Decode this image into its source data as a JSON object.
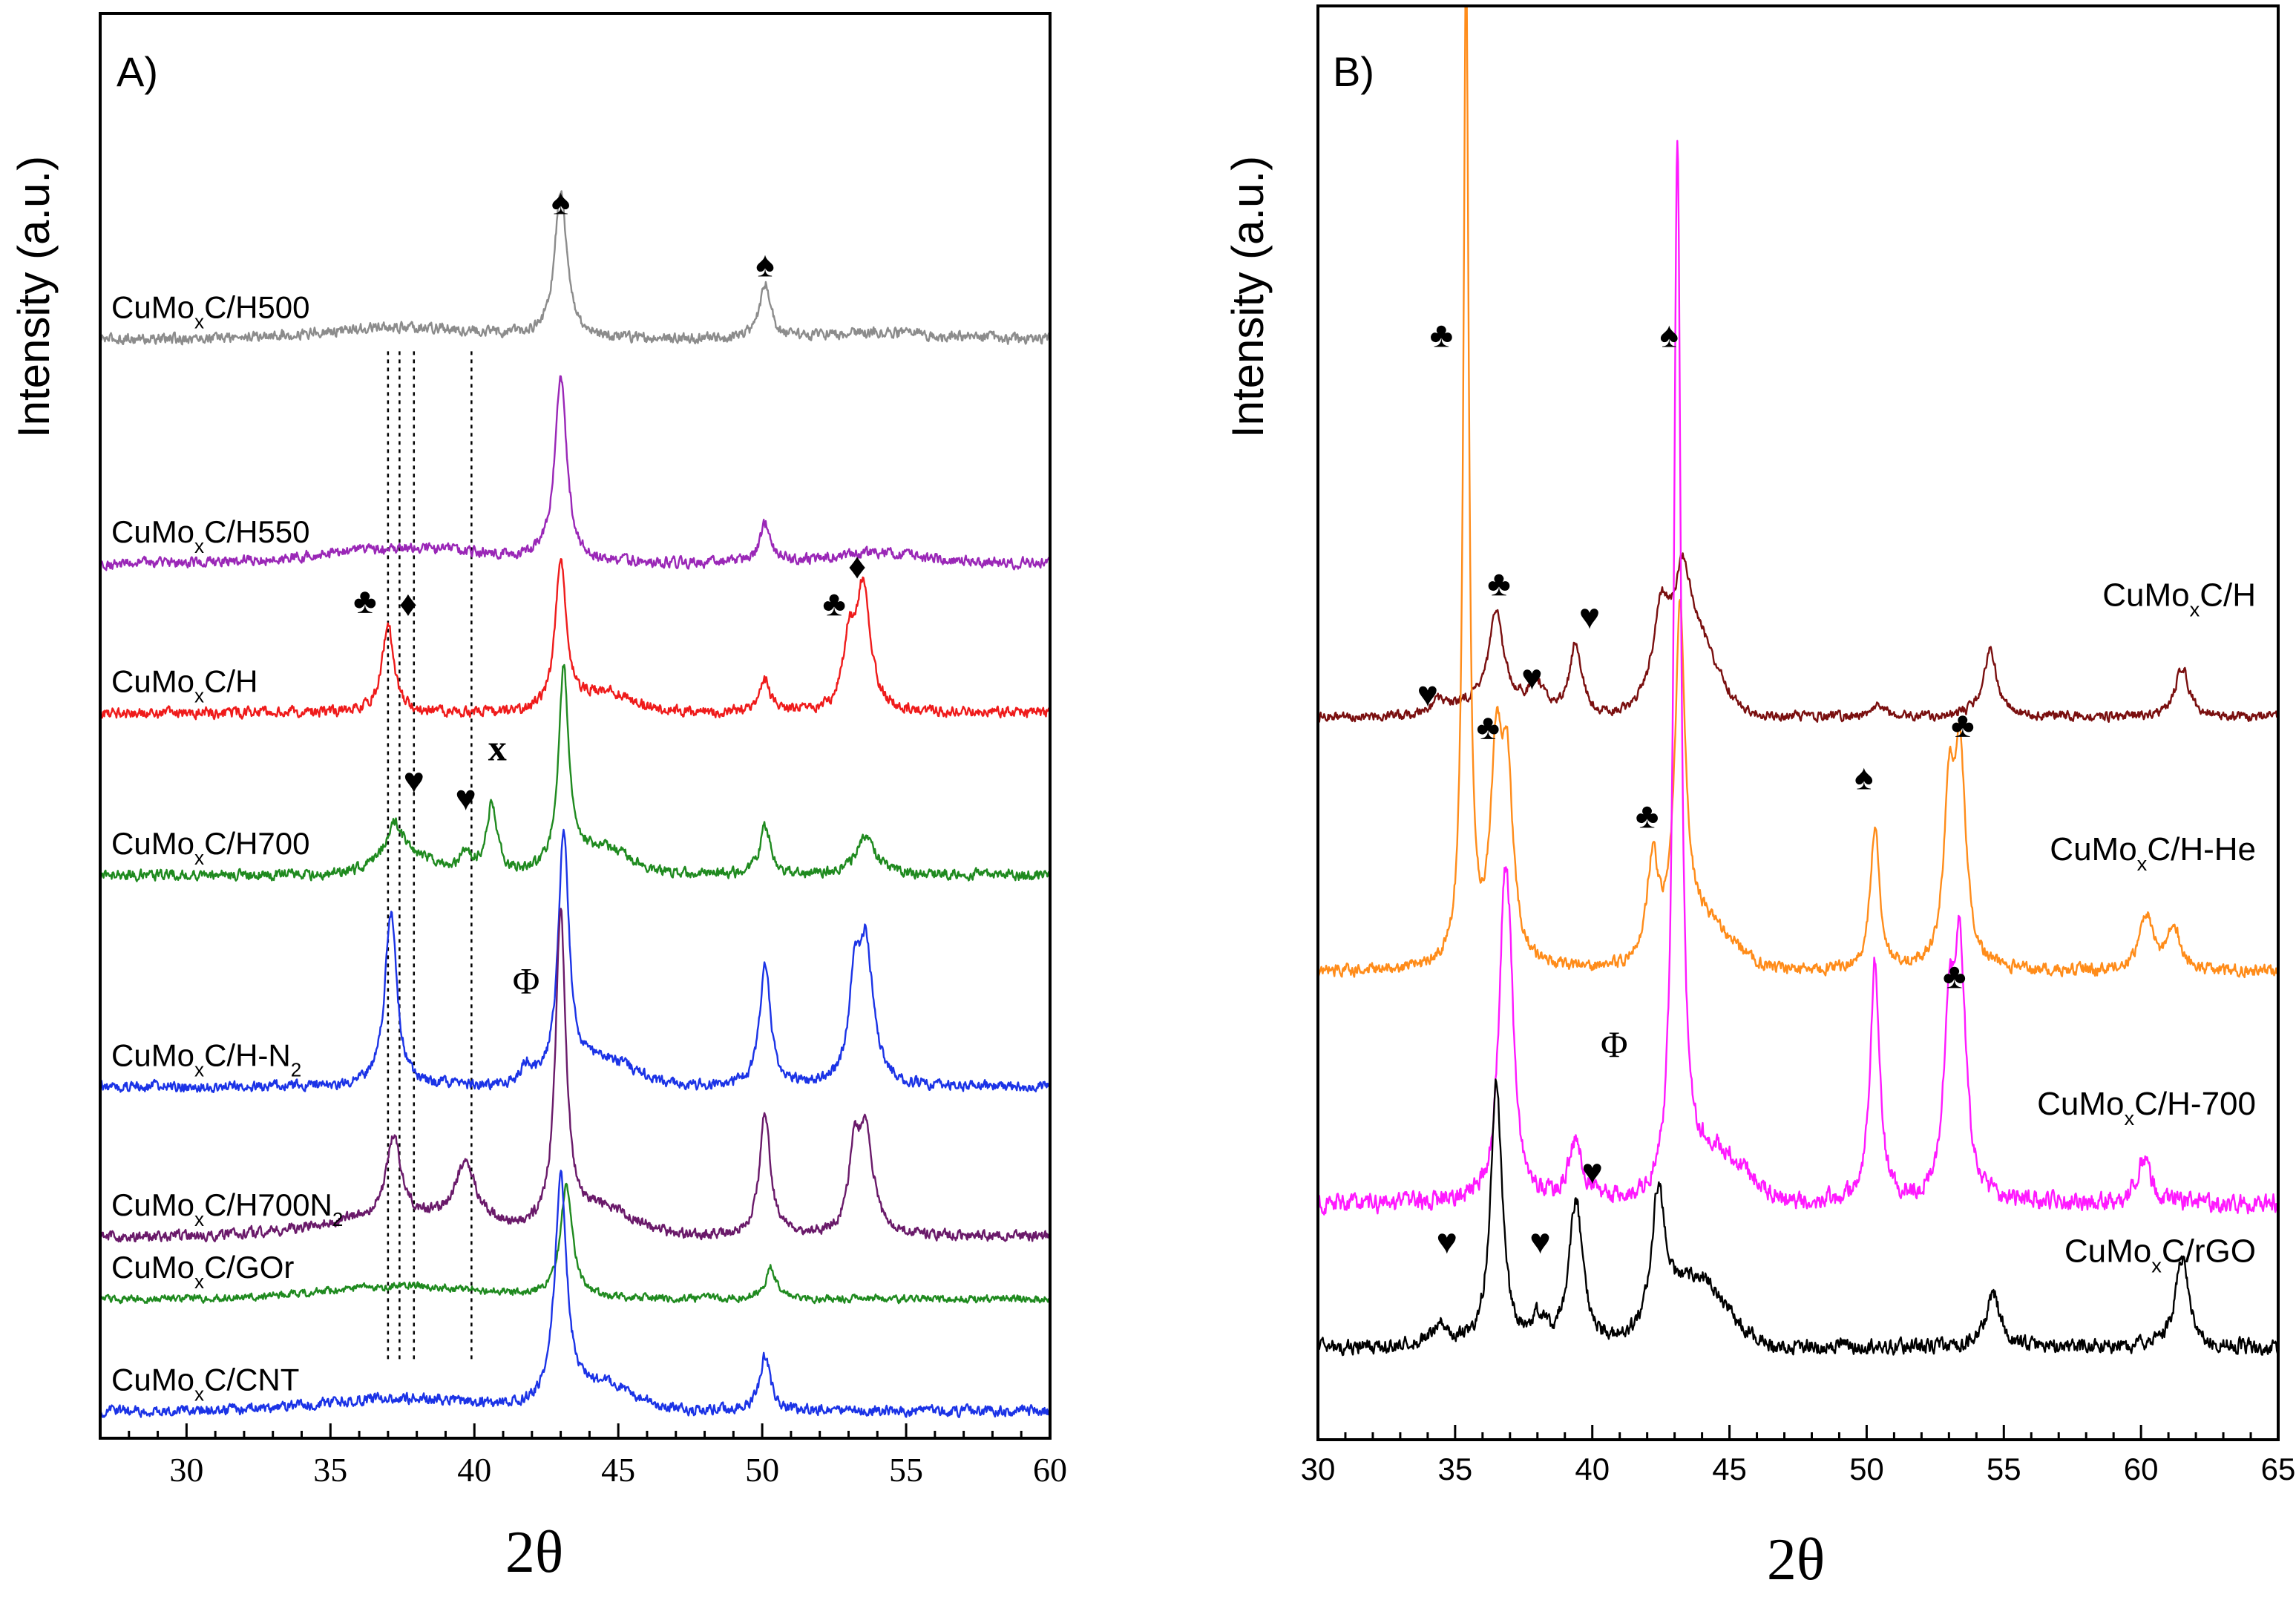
{
  "figure": {
    "background": "#ffffff",
    "axis_color": "#000000"
  },
  "chart_data": [
    {
      "type": "line",
      "panel_label": "A)",
      "xlabel": "2θ",
      "ylabel": "Intensity (a.u.)",
      "xlim": [
        27,
        60
      ],
      "xticks": [
        30,
        35,
        40,
        45,
        50,
        55,
        60
      ],
      "ylim": [
        0,
        100
      ],
      "y_ticks_labeled": false,
      "series": [
        {
          "name": "CuMoxC/H500",
          "label_main": "CuMo",
          "label_sub": "x",
          "label_rest": "C/H500",
          "label_sub2": "",
          "color": "#8c8c8c",
          "baseline": 88,
          "noise": 0.35,
          "humps": [
            [
              37.5,
              0.9,
              4.0
            ],
            [
              54.0,
              0.5,
              2.5
            ]
          ],
          "peaks": [
            [
              43.0,
              12.0,
              0.25
            ],
            [
              50.1,
              4.5,
              0.22
            ]
          ]
        },
        {
          "name": "CuMoxC/H550",
          "label_main": "CuMo",
          "label_sub": "x",
          "label_rest": "C/H550",
          "label_sub2": "",
          "color": "#9a27b7",
          "baseline": 70,
          "noise": 0.35,
          "humps": [
            [
              37.5,
              1.2,
              4.0
            ],
            [
              54.0,
              0.8,
              2.5
            ]
          ],
          "peaks": [
            [
              43.0,
              15.0,
              0.25
            ],
            [
              50.1,
              3.2,
              0.22
            ]
          ]
        },
        {
          "name": "CuMoxC/H",
          "label_main": "CuMo",
          "label_sub": "x",
          "label_rest": "C/H",
          "label_sub2": "",
          "color": "#ef1b1b",
          "baseline": 58,
          "noise": 0.35,
          "humps": [
            [
              44.5,
              1.5,
              1.5
            ]
          ],
          "peaks": [
            [
              37.0,
              7.0,
              0.25
            ],
            [
              43.0,
              12.0,
              0.22
            ],
            [
              50.1,
              2.5,
              0.22
            ],
            [
              53.0,
              5.0,
              0.22
            ],
            [
              53.5,
              10.0,
              0.3
            ]
          ]
        },
        {
          "name": "CuMoxC/H700",
          "label_main": "CuMo",
          "label_sub": "x",
          "label_rest": "C/H700",
          "label_sub2": "",
          "color": "#1f8a1f",
          "baseline": 45,
          "noise": 0.35,
          "humps": [
            [
              37.5,
              1.8,
              1.2
            ],
            [
              44.5,
              2.0,
              1.3
            ]
          ],
          "peaks": [
            [
              37.2,
              2.5,
              0.3
            ],
            [
              39.7,
              1.5,
              0.3
            ],
            [
              40.6,
              5.5,
              0.22
            ],
            [
              43.1,
              16.0,
              0.22
            ],
            [
              50.1,
              4.0,
              0.22
            ],
            [
              53.6,
              3.0,
              0.4
            ]
          ]
        },
        {
          "name": "CuMoxC/H-N2",
          "label_main": "CuMo",
          "label_sub": "x",
          "label_rest": "C/H-N",
          "label_sub2": "2",
          "color": "#1b33e6",
          "baseline": 28,
          "noise": 0.35,
          "humps": [
            [
              44.5,
              2.0,
              1.5
            ]
          ],
          "peaks": [
            [
              37.1,
              14.0,
              0.25
            ],
            [
              41.8,
              1.5,
              0.2
            ],
            [
              43.1,
              20.0,
              0.22
            ],
            [
              50.1,
              10.0,
              0.22
            ],
            [
              53.2,
              7.0,
              0.22
            ],
            [
              53.6,
              11.0,
              0.3
            ]
          ]
        },
        {
          "name": "CuMoxC/H700N2",
          "label_main": "CuMo",
          "label_sub": "x",
          "label_rest": "C/H700N",
          "label_sub2": "2",
          "color": "#6a1a6a",
          "baseline": 16,
          "noise": 0.35,
          "humps": [
            [
              37.5,
              1.5,
              4.0
            ],
            [
              44.5,
              2.0,
              1.5
            ]
          ],
          "peaks": [
            [
              37.2,
              6.5,
              0.3
            ],
            [
              39.7,
              5.0,
              0.4
            ],
            [
              43.0,
              25.0,
              0.22
            ],
            [
              50.1,
              10.0,
              0.22
            ],
            [
              53.2,
              6.0,
              0.22
            ],
            [
              53.6,
              8.0,
              0.3
            ]
          ]
        },
        {
          "name": "CuMoxC/GOr",
          "label_main": "CuMo",
          "label_sub": "x",
          "label_rest": "C/GOr",
          "label_sub2": "",
          "color": "#1f8a1f",
          "baseline": 11,
          "noise": 0.25,
          "humps": [
            [
              37.5,
              1.0,
              4.0
            ]
          ],
          "peaks": [
            [
              43.2,
              9.0,
              0.25
            ],
            [
              50.3,
              2.5,
              0.22
            ]
          ]
        },
        {
          "name": "CuMoxC/CNT",
          "label_main": "CuMo",
          "label_sub": "x",
          "label_rest": "C/CNT",
          "label_sub2": "",
          "color": "#1b33e6",
          "baseline": 2,
          "noise": 0.35,
          "humps": [
            [
              37.5,
              1.0,
              4.0
            ],
            [
              44.5,
              2.0,
              1.5
            ]
          ],
          "peaks": [
            [
              43.0,
              18.0,
              0.25
            ],
            [
              50.1,
              4.5,
              0.22
            ]
          ]
        }
      ],
      "dotted_lines": [
        37.0,
        37.4,
        37.9,
        39.9
      ],
      "annotations": [
        {
          "text": "♠",
          "x": 43.0,
          "y": 98
        },
        {
          "text": "♠",
          "x": 50.1,
          "y": 93
        },
        {
          "text": "♣",
          "x": 36.2,
          "y": 66
        },
        {
          "text": "♦",
          "x": 37.7,
          "y": 65.8
        },
        {
          "text": "♣",
          "x": 52.5,
          "y": 65.8
        },
        {
          "text": "♦",
          "x": 53.3,
          "y": 68.8
        },
        {
          "text": "x",
          "x": 40.8,
          "y": 54.2
        },
        {
          "text": "♥",
          "x": 37.9,
          "y": 51.6
        },
        {
          "text": "♥",
          "x": 39.7,
          "y": 50.2
        },
        {
          "text": "Φ",
          "x": 41.8,
          "y": 35.5
        }
      ]
    },
    {
      "type": "line",
      "panel_label": "B)",
      "xlabel": "2θ",
      "ylabel": "Intensity (a.u.)",
      "xlim": [
        30,
        65
      ],
      "xticks": [
        30,
        35,
        40,
        45,
        50,
        55,
        60,
        65
      ],
      "ylim": [
        0,
        100
      ],
      "y_ticks_labeled": false,
      "series": [
        {
          "name": "CuMoxC/H",
          "label_main": "CuMo",
          "label_sub": "x",
          "label_rest": "C/H",
          "label_sub2": "",
          "color": "#7a0f0f",
          "baseline": 64,
          "noise": 0.35,
          "humps": [
            [
              43.5,
              8.0,
              1.3
            ],
            [
              36.5,
              1.5,
              2.0
            ]
          ],
          "peaks": [
            [
              34.4,
              1.0,
              0.3
            ],
            [
              36.5,
              8.0,
              0.3
            ],
            [
              38.0,
              2.0,
              0.3
            ],
            [
              39.4,
              6.5,
              0.25
            ],
            [
              42.5,
              6.0,
              0.3
            ],
            [
              43.3,
              6.0,
              0.3
            ],
            [
              50.4,
              1.2,
              0.3
            ],
            [
              54.5,
              6.0,
              0.3
            ],
            [
              61.5,
              4.5,
              0.3
            ]
          ]
        },
        {
          "name": "CuMoxC/H-He",
          "label_main": "CuMo",
          "label_sub": "x",
          "label_rest": "C/H-He",
          "label_sub2": "",
          "color": "#ff8c1a",
          "baseline": 41,
          "noise": 0.45,
          "humps": [
            [
              44.0,
              4.0,
              1.5
            ]
          ],
          "peaks": [
            [
              35.4,
              90.0,
              0.12
            ],
            [
              36.5,
              18.0,
              0.25
            ],
            [
              36.9,
              16.0,
              0.25
            ],
            [
              42.2,
              9.0,
              0.25
            ],
            [
              43.2,
              30.0,
              0.22
            ],
            [
              50.3,
              13.0,
              0.2
            ],
            [
              53.0,
              14.0,
              0.22
            ],
            [
              53.4,
              19.0,
              0.25
            ],
            [
              60.2,
              5.0,
              0.3
            ],
            [
              61.2,
              4.0,
              0.25
            ]
          ]
        },
        {
          "name": "CuMoxC/H-700",
          "label_main": "CuMo",
          "label_sub": "x",
          "label_rest": "C/H-700",
          "label_sub2": "",
          "color": "#ff19ff",
          "baseline": 20,
          "noise": 0.7,
          "humps": [
            [
              44.5,
              4.5,
              1.5
            ]
          ],
          "peaks": [
            [
              36.8,
              25.0,
              0.25
            ],
            [
              37.0,
              10.0,
              0.2
            ],
            [
              39.4,
              5.5,
              0.3
            ],
            [
              43.1,
              95.0,
              0.15
            ],
            [
              50.3,
              22.0,
              0.2
            ],
            [
              53.0,
              15.0,
              0.22
            ],
            [
              53.4,
              22.0,
              0.25
            ],
            [
              60.1,
              4.0,
              0.3
            ]
          ]
        },
        {
          "name": "CuMoxC/rGO",
          "label_main": "CuMo",
          "label_sub": "x",
          "label_rest": "C/rGO",
          "label_sub2": "",
          "color": "#000000",
          "baseline": 7,
          "noise": 0.55,
          "humps": [
            [
              43.8,
              6.0,
              1.5
            ]
          ],
          "peaks": [
            [
              34.4,
              1.8,
              0.3
            ],
            [
              36.5,
              24.0,
              0.25
            ],
            [
              38.0,
              2.0,
              0.3
            ],
            [
              39.4,
              13.0,
              0.3
            ],
            [
              42.4,
              12.0,
              0.3
            ],
            [
              54.6,
              5.0,
              0.3
            ],
            [
              61.5,
              8.0,
              0.3
            ]
          ]
        }
      ],
      "dotted_lines": [],
      "annotations": [
        {
          "text": "♣",
          "x": 34.5,
          "y": 97.5
        },
        {
          "text": "♠",
          "x": 42.8,
          "y": 97.5
        },
        {
          "text": "♣",
          "x": 36.6,
          "y": 75
        },
        {
          "text": "♥",
          "x": 39.9,
          "y": 72
        },
        {
          "text": "♥",
          "x": 34.0,
          "y": 65
        },
        {
          "text": "♥",
          "x": 37.8,
          "y": 66.5
        },
        {
          "text": "♣",
          "x": 36.2,
          "y": 62
        },
        {
          "text": "♣",
          "x": 42.0,
          "y": 54
        },
        {
          "text": "♠",
          "x": 49.9,
          "y": 57.5
        },
        {
          "text": "♣",
          "x": 53.5,
          "y": 62.2
        },
        {
          "text": "♣",
          "x": 53.2,
          "y": 39.5
        },
        {
          "text": "Φ",
          "x": 40.8,
          "y": 33.3
        },
        {
          "text": "♥",
          "x": 40.0,
          "y": 21.8
        },
        {
          "text": "♥",
          "x": 34.7,
          "y": 15.5
        },
        {
          "text": "♥",
          "x": 38.1,
          "y": 15.5
        }
      ]
    }
  ]
}
